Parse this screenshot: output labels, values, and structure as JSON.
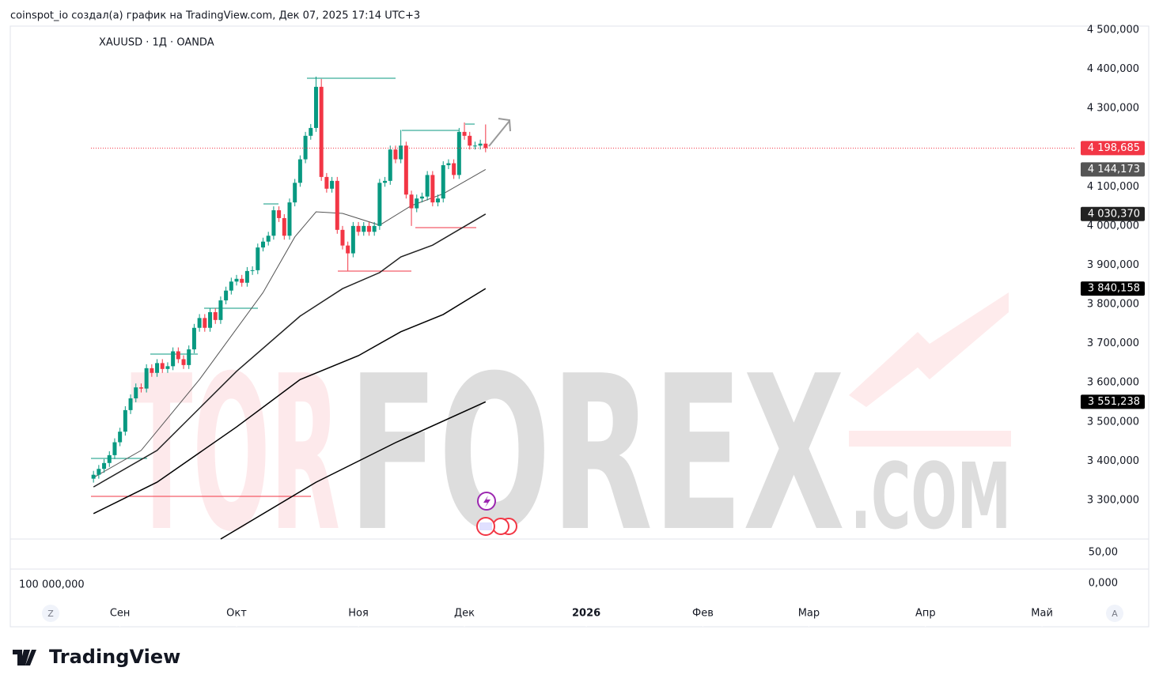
{
  "header": "coinspot_io создал(а) график на TradingView.com, Дек 07, 2025 17:14 UTC+3",
  "footer_logo": "TradingView",
  "chart_data": {
    "type": "candlestick",
    "title": "XAUUSD · 1Д · OANDA",
    "open": [
      3355,
      3365,
      3380,
      3395,
      3415,
      3448,
      3475,
      3530,
      3560,
      3588,
      3585,
      3637,
      3625,
      3650,
      3635,
      3642,
      3680,
      3660,
      3645,
      3685,
      3740,
      3765,
      3740,
      3780,
      3760,
      3810,
      3835,
      3858,
      3865,
      3855,
      3885,
      3887,
      3945,
      3960,
      3975,
      4040,
      4020,
      3975,
      4060,
      4110,
      4170,
      4230,
      4250,
      4355,
      4125,
      4095,
      4115,
      3990,
      3950,
      3930,
      4000,
      3985,
      4000,
      3985,
      4000,
      4110,
      4115,
      4195,
      4170,
      4205,
      4080,
      4045,
      4070,
      4075,
      4130,
      4060,
      4070,
      4155,
      4160,
      4130,
      4240,
      4230,
      4205,
      4205,
      4210
    ],
    "high": [
      3375,
      3390,
      3405,
      3425,
      3458,
      3485,
      3540,
      3570,
      3598,
      3598,
      3647,
      3647,
      3660,
      3660,
      3652,
      3690,
      3690,
      3670,
      3695,
      3750,
      3775,
      3775,
      3790,
      3790,
      3820,
      3845,
      3868,
      3875,
      3875,
      3895,
      3897,
      3955,
      3970,
      3985,
      4050,
      4050,
      4030,
      4070,
      4120,
      4180,
      4240,
      4260,
      4381,
      4375,
      4135,
      4125,
      4125,
      4000,
      3960,
      4010,
      4010,
      4010,
      4010,
      4010,
      4120,
      4125,
      4205,
      4205,
      4245,
      4215,
      4090,
      4080,
      4085,
      4140,
      4140,
      4080,
      4165,
      4170,
      4170,
      4250,
      4264,
      4240,
      4215,
      4220,
      4259
    ],
    "low": [
      3345,
      3355,
      3370,
      3385,
      3405,
      3438,
      3465,
      3520,
      3550,
      3575,
      3575,
      3615,
      3615,
      3625,
      3625,
      3632,
      3650,
      3635,
      3635,
      3675,
      3730,
      3730,
      3730,
      3750,
      3750,
      3800,
      3825,
      3848,
      3845,
      3845,
      3875,
      3877,
      3935,
      3950,
      3965,
      4010,
      3965,
      3965,
      4050,
      4100,
      4160,
      4220,
      4240,
      4115,
      4085,
      4085,
      3980,
      3940,
      3886,
      3920,
      3975,
      3975,
      3975,
      3975,
      3990,
      4100,
      4105,
      4160,
      4160,
      4070,
      4000,
      4035,
      4060,
      4065,
      4050,
      4050,
      4060,
      4145,
      4120,
      4120,
      4220,
      4195,
      4195,
      4195,
      4188
    ],
    "close": [
      3365,
      3380,
      3395,
      3415,
      3448,
      3475,
      3530,
      3560,
      3588,
      3585,
      3637,
      3625,
      3650,
      3635,
      3642,
      3680,
      3660,
      3645,
      3685,
      3740,
      3765,
      3740,
      3780,
      3760,
      3810,
      3835,
      3858,
      3865,
      3855,
      3885,
      3887,
      3945,
      3960,
      3975,
      4040,
      4020,
      3975,
      4060,
      4110,
      4170,
      4230,
      4250,
      4355,
      4125,
      4095,
      4115,
      3990,
      3950,
      3930,
      4000,
      3985,
      4000,
      3985,
      4000,
      4110,
      4115,
      4195,
      4170,
      4205,
      4080,
      4045,
      4070,
      4075,
      4130,
      4060,
      4070,
      4155,
      4160,
      4130,
      4240,
      4230,
      4205,
      4205,
      4210,
      4198.685
    ],
    "up_color": "#089981",
    "down_color": "#f23645",
    "xlim": [
      -15.7,
      185.4
    ],
    "xticks": [
      {
        "value": 5,
        "label": "Сен"
      },
      {
        "value": 27,
        "label": "Окт"
      },
      {
        "value": 50,
        "label": "Ноя"
      },
      {
        "value": 70,
        "label": "Дек"
      },
      {
        "value": 93,
        "label": "2026"
      },
      {
        "value": 115,
        "label": "Фев"
      },
      {
        "value": 135,
        "label": "Мар"
      },
      {
        "value": 157,
        "label": "Апр"
      },
      {
        "value": 179,
        "label": "Май"
      }
    ],
    "ylim": [
      3201,
      4510
    ],
    "yticks": [
      {
        "value": 3300,
        "label": "3 300,000"
      },
      {
        "value": 3400,
        "label": "3 400,000"
      },
      {
        "value": 3500,
        "label": "3 500,000"
      },
      {
        "value": 3600,
        "label": "3 600,000"
      },
      {
        "value": 3700,
        "label": "3 700,000"
      },
      {
        "value": 3800,
        "label": "3 800,000"
      },
      {
        "value": 3900,
        "label": "3 900,000"
      },
      {
        "value": 4000,
        "label": "4 000,000"
      },
      {
        "value": 4100,
        "label": "4 100,000"
      },
      {
        "value": 4200,
        "label": "4 200,000"
      },
      {
        "value": 4300,
        "label": "4 300,000"
      },
      {
        "value": 4400,
        "label": "4 400,000"
      },
      {
        "value": 4500,
        "label": "4 500,000"
      }
    ],
    "last_price": 4198.685,
    "last_price_label": "4 198,685",
    "last_price_color": "#f23645",
    "moving_averages": [
      {
        "x": [
          0,
          9,
          20,
          32,
          38,
          42,
          47,
          54,
          60,
          66,
          74
        ],
        "values": [
          3358,
          3427,
          3608,
          3830,
          3972,
          4036,
          4032,
          4002,
          4052,
          4082,
          4144.173
        ],
        "value_label": "4 144,173",
        "color": "#555555",
        "label_color": "#555555"
      },
      {
        "x": [
          0,
          12,
          27,
          39,
          47,
          54,
          58,
          64,
          74
        ],
        "values": [
          3334,
          3427,
          3629,
          3770,
          3840,
          3881,
          3921,
          3951,
          4030.37
        ],
        "value_label": "4 030,370",
        "color": "#222222",
        "label_color": "#222222"
      },
      {
        "x": [
          0,
          12,
          27,
          39,
          50,
          58,
          66,
          74
        ],
        "values": [
          3266,
          3346,
          3487,
          3608,
          3669,
          3730,
          3774,
          3840.158
        ],
        "value_label": "3 840,158",
        "color": "#000000",
        "label_color": "#000000"
      },
      {
        "x": [
          24,
          42,
          57,
          74
        ],
        "values": [
          3201,
          3346,
          3447,
          3551.238
        ],
        "value_label": "3 551,238",
        "color": "#000000",
        "label_color": "#000000"
      }
    ],
    "volume_ticks": [
      {
        "value": 50,
        "label": "50,00"
      },
      {
        "value": 0,
        "label": "0,000"
      }
    ],
    "volume_label": "100 000,000",
    "watermark": [
      "TOR",
      "FOREX",
      ".COM"
    ],
    "buttons": [
      "Z",
      "A"
    ]
  }
}
